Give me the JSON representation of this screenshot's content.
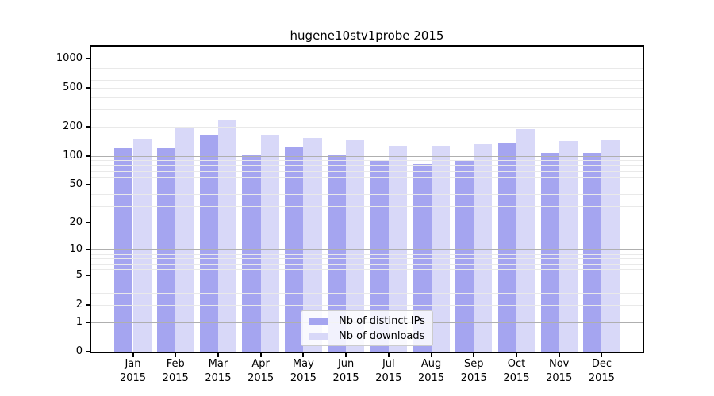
{
  "title": "hugene10stv1probe 2015",
  "chart_data": {
    "type": "bar",
    "title": "hugene10stv1probe 2015",
    "categories": [
      "Jan",
      "Feb",
      "Mar",
      "Apr",
      "May",
      "Jun",
      "Jul",
      "Aug",
      "Sep",
      "Oct",
      "Nov",
      "Dec"
    ],
    "x_year_label": "2015",
    "series": [
      {
        "name": "Nb of distinct IPs",
        "color": "#a5a5f0",
        "values": [
          121,
          121,
          161,
          102,
          125,
          102,
          91,
          82,
          88,
          134,
          107,
          107
        ]
      },
      {
        "name": "Nb of downloads",
        "color": "#d8d8f8",
        "values": [
          151,
          194,
          233,
          163,
          153,
          146,
          127,
          128,
          132,
          187,
          141,
          146
        ]
      }
    ],
    "yscale": "log1p",
    "yticks": [
      0,
      1,
      2,
      5,
      10,
      20,
      50,
      100,
      200,
      500,
      1000
    ],
    "ylim": [
      0,
      1300
    ],
    "grid": "on",
    "legend_position": "lower center",
    "colors": {
      "bar_distinct_ips": "#a5a5f0",
      "bar_downloads": "#d8d8f8",
      "gridline_minor": "#e9e9e9",
      "gridline_major": "#afafaf",
      "axis": "#000000"
    }
  },
  "legend": {
    "items": [
      {
        "label": "Nb of distinct IPs",
        "color": "#a5a5f0"
      },
      {
        "label": "Nb of downloads",
        "color": "#d8d8f8"
      }
    ]
  }
}
